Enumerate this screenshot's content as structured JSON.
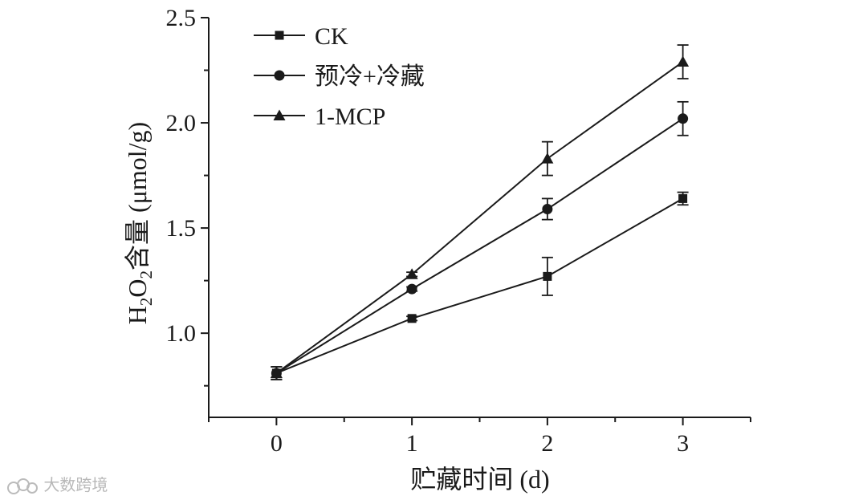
{
  "chart_data": {
    "type": "line",
    "x": [
      0,
      1,
      2,
      3
    ],
    "xlabel": "贮藏时间 (d)",
    "ylabel": "H2O2含量 (μmol/g)",
    "ylabel_parts": {
      "pre": "H",
      "sub1": "2",
      "mid": "O",
      "sub2": "2",
      "post": "含量 (μmol/g)"
    },
    "xlim": [
      -0.5,
      3.5
    ],
    "ylim": [
      0.6,
      2.5
    ],
    "xticks": [
      0,
      1,
      2,
      3
    ],
    "yticks": [
      1.0,
      1.5,
      2.0,
      2.5
    ],
    "ytick_labels": [
      "1.0",
      "1.5",
      "2.0",
      "2.5"
    ],
    "grid": false,
    "legend_position": "top-left",
    "series": [
      {
        "name": "CK",
        "marker": "square",
        "values": [
          0.81,
          1.07,
          1.27,
          1.64
        ],
        "errors": [
          0.03,
          0.01,
          0.09,
          0.03
        ]
      },
      {
        "name": "预冷+冷藏",
        "marker": "circle",
        "values": [
          0.81,
          1.21,
          1.59,
          2.02
        ],
        "errors": [
          0.03,
          0.01,
          0.05,
          0.08
        ]
      },
      {
        "name": "1-MCP",
        "marker": "triangle",
        "values": [
          0.81,
          1.28,
          1.83,
          2.29
        ],
        "errors": [
          0.03,
          0.01,
          0.08,
          0.08
        ]
      }
    ],
    "color": "#1a1a1a"
  },
  "watermark": {
    "text": "大数跨境",
    "logo_icon": "cloud-logo-icon"
  }
}
